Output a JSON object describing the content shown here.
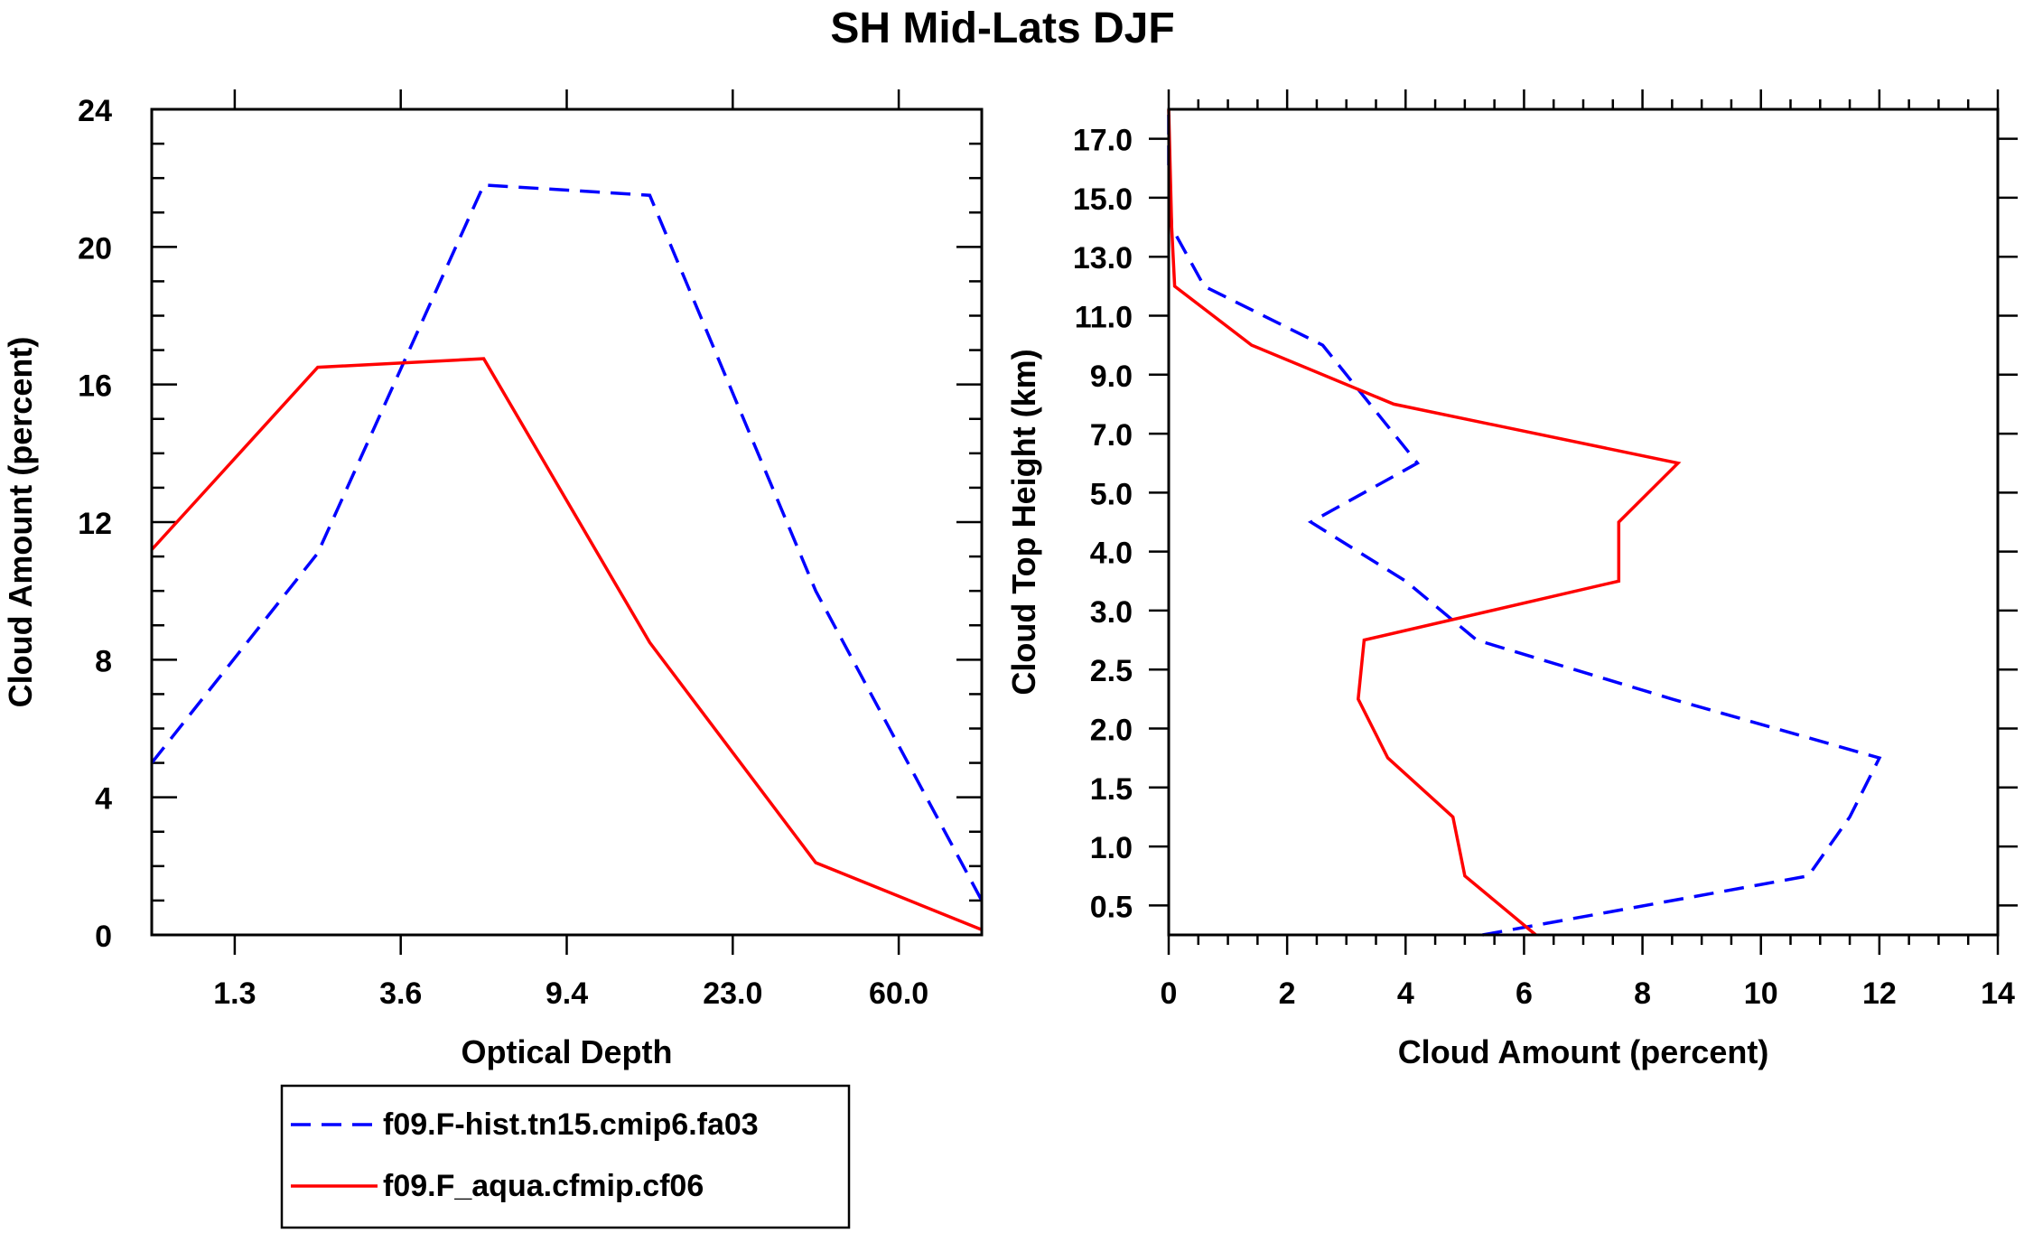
{
  "title": "SH Mid-Lats DJF",
  "colors": {
    "series1": "#0000ff",
    "series2": "#ff0000",
    "axis": "#000000",
    "background": "#ffffff"
  },
  "legend": {
    "items": [
      {
        "label": "f09.F-hist.tn15.cmip6.fa03",
        "color": "#0000ff",
        "style": "dashed"
      },
      {
        "label": "f09.F_aqua.cfmip.cf06",
        "color": "#ff0000",
        "style": "solid"
      }
    ]
  },
  "chart_data": [
    {
      "type": "line",
      "xlabel": "Optical Depth",
      "ylabel": "Cloud Amount (percent)",
      "xlim": [
        0,
        5
      ],
      "ylim": [
        0,
        24
      ],
      "xticks": [
        {
          "pos": 0.5,
          "label": "1.3"
        },
        {
          "pos": 1.5,
          "label": "3.6"
        },
        {
          "pos": 2.5,
          "label": "9.4"
        },
        {
          "pos": 3.5,
          "label": "23.0"
        },
        {
          "pos": 4.5,
          "label": "60.0"
        }
      ],
      "yticks": [
        0,
        4,
        8,
        12,
        16,
        20,
        24
      ],
      "yminor_step": 1,
      "series": [
        {
          "name": "f09.F-hist.tn15.cmip6.fa03",
          "style": "dashed",
          "color": "#0000ff",
          "x": [
            0,
            1,
            2,
            3,
            4,
            5
          ],
          "values": [
            5.0,
            11.1,
            21.8,
            21.5,
            10.0,
            1.0
          ]
        },
        {
          "name": "f09.F_aqua.cfmip.cf06",
          "style": "solid",
          "color": "#ff0000",
          "x": [
            0,
            1,
            2,
            3,
            4,
            5
          ],
          "values": [
            11.2,
            16.5,
            16.75,
            8.5,
            2.1,
            0.15
          ]
        }
      ]
    },
    {
      "type": "line",
      "orientation": "vertical-profile",
      "xlabel": "Cloud Amount (percent)",
      "ylabel": "Cloud Top Height (km)",
      "xlim": [
        0,
        14
      ],
      "xticks": [
        0,
        2,
        4,
        6,
        8,
        10,
        12,
        14
      ],
      "xminor_step": 0.5,
      "ylim": [
        0,
        14
      ],
      "yticks": [
        {
          "pos": 0.5,
          "label": "0.5"
        },
        {
          "pos": 1.5,
          "label": "1.0"
        },
        {
          "pos": 2.5,
          "label": "1.5"
        },
        {
          "pos": 3.5,
          "label": "2.0"
        },
        {
          "pos": 4.5,
          "label": "2.5"
        },
        {
          "pos": 5.5,
          "label": "3.0"
        },
        {
          "pos": 6.5,
          "label": "4.0"
        },
        {
          "pos": 7.5,
          "label": "5.0"
        },
        {
          "pos": 8.5,
          "label": "7.0"
        },
        {
          "pos": 9.5,
          "label": "9.0"
        },
        {
          "pos": 10.5,
          "label": "11.0"
        },
        {
          "pos": 11.5,
          "label": "13.0"
        },
        {
          "pos": 12.5,
          "label": "15.0"
        },
        {
          "pos": 13.5,
          "label": "17.0"
        }
      ],
      "series": [
        {
          "name": "f09.F-hist.tn15.cmip6.fa03",
          "style": "dashed",
          "color": "#0000ff",
          "x": [
            5.3,
            10.8,
            11.5,
            12.0,
            8.5,
            5.2,
            4.0,
            2.4,
            4.2,
            3.4,
            2.6,
            0.6,
            0.05,
            0.0,
            0.0
          ],
          "y": [
            0,
            1,
            2,
            3,
            4,
            5,
            6,
            7,
            8,
            9,
            10,
            11,
            12,
            13,
            14
          ]
        },
        {
          "name": "f09.F_aqua.cfmip.cf06",
          "style": "solid",
          "color": "#ff0000",
          "x": [
            6.2,
            5.0,
            4.8,
            3.7,
            3.2,
            3.3,
            7.6,
            7.6,
            8.6,
            3.8,
            1.4,
            0.1,
            0.05,
            0.0
          ],
          "y": [
            0,
            1,
            2,
            3,
            4,
            5,
            6,
            7,
            8,
            9,
            10,
            11,
            12,
            14
          ]
        }
      ]
    }
  ]
}
